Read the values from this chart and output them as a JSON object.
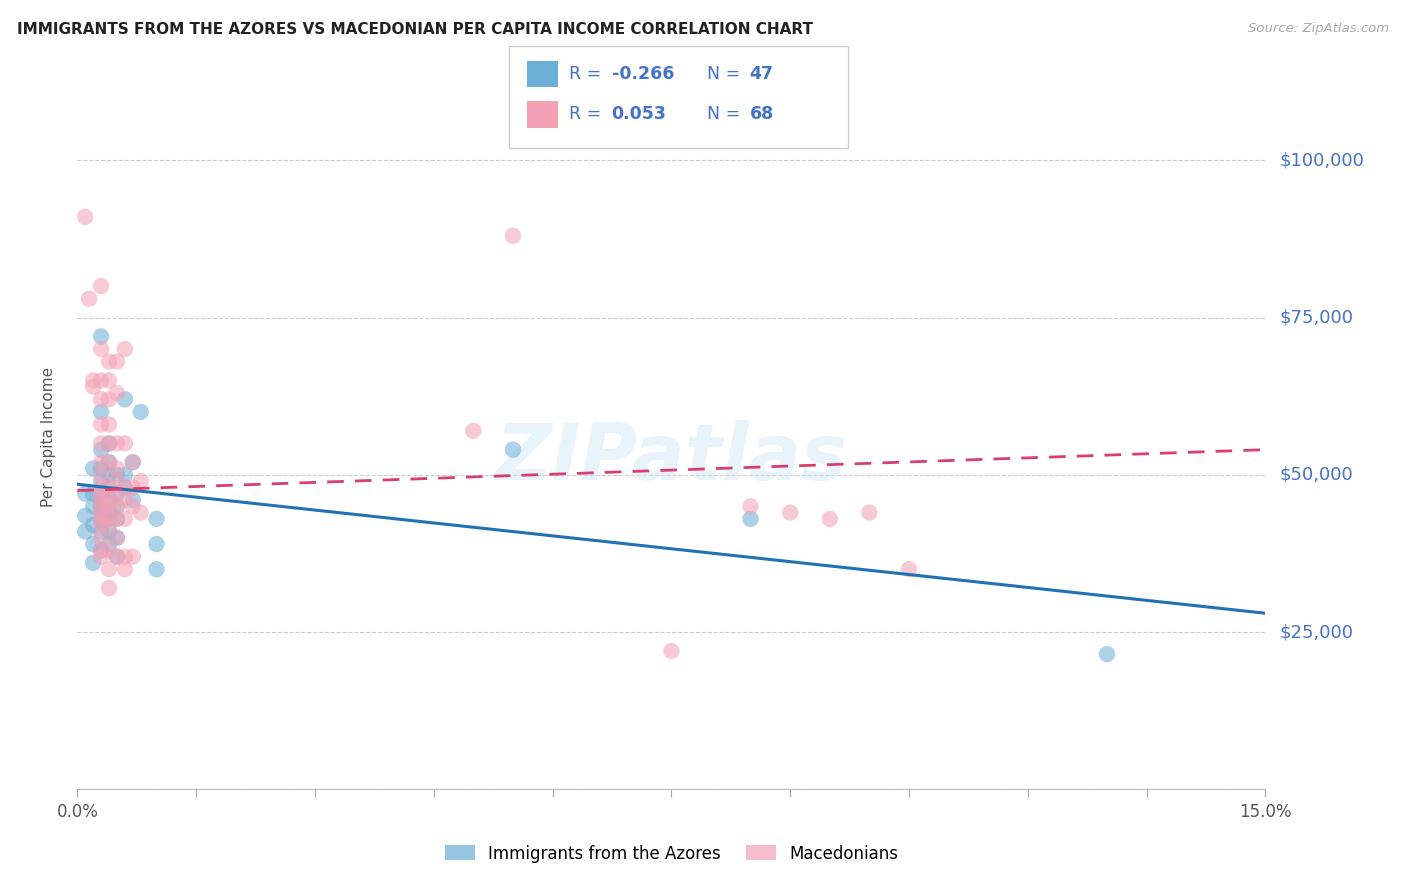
{
  "title": "IMMIGRANTS FROM THE AZORES VS MACEDONIAN PER CAPITA INCOME CORRELATION CHART",
  "source": "Source: ZipAtlas.com",
  "ylabel": "Per Capita Income",
  "legend_label1": "Immigrants from the Azores",
  "legend_label2": "Macedonians",
  "watermark": "ZIPatlas",
  "color_blue": "#6baed6",
  "color_pink": "#f4a0b5",
  "color_blue_line": "#2171b5",
  "color_pink_line": "#d63f6e",
  "xlim": [
    0.0,
    0.15
  ],
  "ylim": [
    0,
    112000
  ],
  "yticks": [
    0,
    25000,
    50000,
    75000,
    100000
  ],
  "ytick_labels": [
    "",
    "$25,000",
    "$50,000",
    "$75,000",
    "$100,000"
  ],
  "xticks": [
    0.0,
    0.015,
    0.03,
    0.045,
    0.06,
    0.075,
    0.09,
    0.105,
    0.12,
    0.135,
    0.15
  ],
  "xtick_labels": [
    "0.0%",
    "",
    "",
    "",
    "",
    "",
    "",
    "",
    "",
    "",
    "15.0%"
  ],
  "blue_points": [
    [
      0.001,
      47000
    ],
    [
      0.001,
      43500
    ],
    [
      0.001,
      41000
    ],
    [
      0.002,
      51000
    ],
    [
      0.002,
      47000
    ],
    [
      0.002,
      45000
    ],
    [
      0.002,
      42000
    ],
    [
      0.002,
      39000
    ],
    [
      0.002,
      36000
    ],
    [
      0.003,
      72000
    ],
    [
      0.003,
      60000
    ],
    [
      0.003,
      54000
    ],
    [
      0.003,
      51000
    ],
    [
      0.003,
      49000
    ],
    [
      0.003,
      47000
    ],
    [
      0.003,
      46000
    ],
    [
      0.003,
      45000
    ],
    [
      0.003,
      44000
    ],
    [
      0.003,
      43000
    ],
    [
      0.003,
      41000
    ],
    [
      0.003,
      38000
    ],
    [
      0.004,
      55000
    ],
    [
      0.004,
      52000
    ],
    [
      0.004,
      50000
    ],
    [
      0.004,
      48000
    ],
    [
      0.004,
      46000
    ],
    [
      0.004,
      44000
    ],
    [
      0.004,
      43000
    ],
    [
      0.004,
      41000
    ],
    [
      0.004,
      39000
    ],
    [
      0.005,
      50000
    ],
    [
      0.005,
      47000
    ],
    [
      0.005,
      45000
    ],
    [
      0.005,
      43000
    ],
    [
      0.005,
      40000
    ],
    [
      0.005,
      37000
    ],
    [
      0.006,
      62000
    ],
    [
      0.006,
      50000
    ],
    [
      0.006,
      48000
    ],
    [
      0.007,
      52000
    ],
    [
      0.007,
      46000
    ],
    [
      0.008,
      60000
    ],
    [
      0.01,
      43000
    ],
    [
      0.01,
      39000
    ],
    [
      0.01,
      35000
    ],
    [
      0.055,
      54000
    ],
    [
      0.085,
      43000
    ],
    [
      0.13,
      21500
    ]
  ],
  "pink_points": [
    [
      0.001,
      91000
    ],
    [
      0.0015,
      78000
    ],
    [
      0.002,
      65000
    ],
    [
      0.002,
      64000
    ],
    [
      0.003,
      80000
    ],
    [
      0.003,
      70000
    ],
    [
      0.003,
      65000
    ],
    [
      0.003,
      62000
    ],
    [
      0.003,
      58000
    ],
    [
      0.003,
      55000
    ],
    [
      0.003,
      52000
    ],
    [
      0.003,
      50000
    ],
    [
      0.003,
      48000
    ],
    [
      0.003,
      47000
    ],
    [
      0.003,
      46000
    ],
    [
      0.003,
      45000
    ],
    [
      0.003,
      44000
    ],
    [
      0.003,
      43000
    ],
    [
      0.003,
      42000
    ],
    [
      0.003,
      40000
    ],
    [
      0.003,
      38000
    ],
    [
      0.003,
      37000
    ],
    [
      0.004,
      68000
    ],
    [
      0.004,
      65000
    ],
    [
      0.004,
      62000
    ],
    [
      0.004,
      58000
    ],
    [
      0.004,
      55000
    ],
    [
      0.004,
      52000
    ],
    [
      0.004,
      48000
    ],
    [
      0.004,
      46000
    ],
    [
      0.004,
      45000
    ],
    [
      0.004,
      43000
    ],
    [
      0.004,
      42000
    ],
    [
      0.004,
      38000
    ],
    [
      0.004,
      35000
    ],
    [
      0.004,
      32000
    ],
    [
      0.005,
      68000
    ],
    [
      0.005,
      63000
    ],
    [
      0.005,
      55000
    ],
    [
      0.005,
      51000
    ],
    [
      0.005,
      49000
    ],
    [
      0.005,
      47000
    ],
    [
      0.005,
      45000
    ],
    [
      0.005,
      43000
    ],
    [
      0.005,
      40000
    ],
    [
      0.005,
      37000
    ],
    [
      0.006,
      70000
    ],
    [
      0.006,
      55000
    ],
    [
      0.006,
      48000
    ],
    [
      0.006,
      46000
    ],
    [
      0.006,
      43000
    ],
    [
      0.006,
      37000
    ],
    [
      0.006,
      35000
    ],
    [
      0.007,
      52000
    ],
    [
      0.007,
      48000
    ],
    [
      0.007,
      45000
    ],
    [
      0.007,
      37000
    ],
    [
      0.008,
      49000
    ],
    [
      0.008,
      44000
    ],
    [
      0.05,
      57000
    ],
    [
      0.055,
      88000
    ],
    [
      0.075,
      22000
    ],
    [
      0.085,
      45000
    ],
    [
      0.09,
      44000
    ],
    [
      0.095,
      43000
    ],
    [
      0.1,
      44000
    ],
    [
      0.105,
      35000
    ]
  ]
}
